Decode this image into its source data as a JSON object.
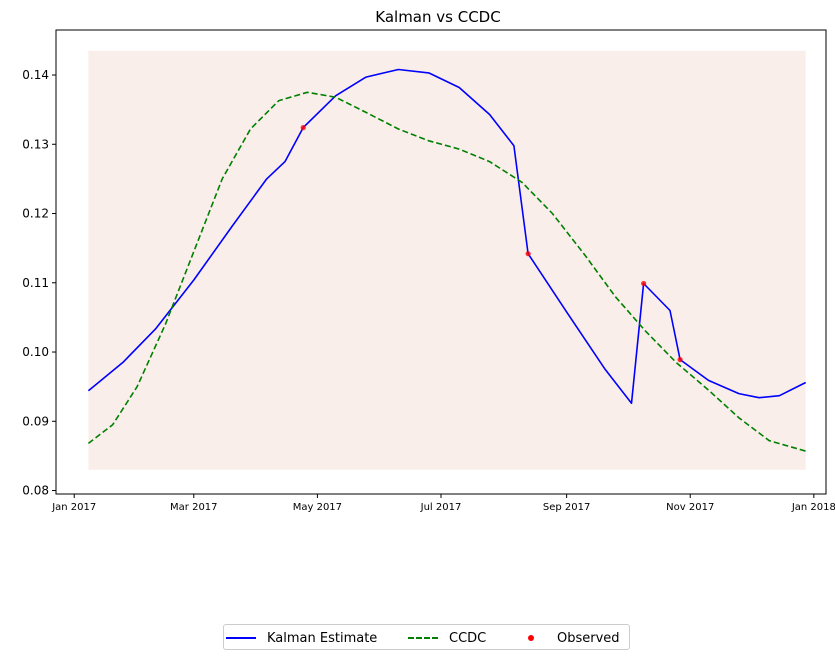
{
  "chart_data": {
    "type": "line",
    "title": "Kalman vs CCDC",
    "xlabel": "",
    "ylabel": "",
    "x_axis": {
      "type": "date",
      "range": [
        "2016-12-23",
        "2018-01-07"
      ],
      "tick_labels": [
        "Jan 2017",
        "Mar 2017",
        "May 2017",
        "Jul 2017",
        "Sep 2017",
        "Nov 2017",
        "Jan 2018"
      ],
      "tick_dates": [
        "2017-01-01",
        "2017-03-01",
        "2017-05-01",
        "2017-07-01",
        "2017-09-01",
        "2017-11-01",
        "2018-01-01"
      ]
    },
    "y_axis": {
      "range": [
        0.0795,
        0.1465
      ],
      "ticks": [
        0.08,
        0.09,
        0.1,
        0.11,
        0.12,
        0.13,
        0.14
      ],
      "tick_labels": [
        "0.08",
        "0.09",
        "0.10",
        "0.11",
        "0.12",
        "0.13",
        "0.14"
      ]
    },
    "shaded_region": {
      "x_start": "2017-01-08",
      "x_end": "2017-12-28",
      "y_min": 0.083,
      "y_max": 0.1435,
      "color": "#f4d6cc"
    },
    "series": [
      {
        "name": "Kalman Estimate",
        "style": "solid",
        "color": "#0000ff",
        "points": [
          [
            "2017-01-08",
            0.0944
          ],
          [
            "2017-01-25",
            0.0985
          ],
          [
            "2017-02-10",
            0.1033
          ],
          [
            "2017-03-01",
            0.1104
          ],
          [
            "2017-03-20",
            0.1182
          ],
          [
            "2017-04-06",
            0.125
          ],
          [
            "2017-04-15",
            0.1275
          ],
          [
            "2017-04-24",
            0.1324
          ],
          [
            "2017-05-10",
            0.137
          ],
          [
            "2017-05-25",
            0.1397
          ],
          [
            "2017-06-10",
            0.1408
          ],
          [
            "2017-06-25",
            0.1403
          ],
          [
            "2017-07-10",
            0.1382
          ],
          [
            "2017-07-25",
            0.1343
          ],
          [
            "2017-08-06",
            0.1298
          ],
          [
            "2017-08-13",
            0.1142
          ],
          [
            "2017-09-01",
            0.1058
          ],
          [
            "2017-09-20",
            0.0975
          ],
          [
            "2017-10-03",
            0.0926
          ],
          [
            "2017-10-09",
            0.1099
          ],
          [
            "2017-10-22",
            0.106
          ],
          [
            "2017-10-27",
            0.0989
          ],
          [
            "2017-11-10",
            0.0959
          ],
          [
            "2017-11-25",
            0.094
          ],
          [
            "2017-12-05",
            0.0934
          ],
          [
            "2017-12-15",
            0.0937
          ],
          [
            "2017-12-28",
            0.0956
          ]
        ]
      },
      {
        "name": "CCDC",
        "style": "dashed",
        "color": "#008000",
        "points": [
          [
            "2017-01-08",
            0.0868
          ],
          [
            "2017-01-20",
            0.0895
          ],
          [
            "2017-02-01",
            0.095
          ],
          [
            "2017-02-15",
            0.104
          ],
          [
            "2017-03-01",
            0.1145
          ],
          [
            "2017-03-15",
            0.125
          ],
          [
            "2017-03-29",
            0.1322
          ],
          [
            "2017-04-12",
            0.1363
          ],
          [
            "2017-04-26",
            0.1375
          ],
          [
            "2017-05-10",
            0.1368
          ],
          [
            "2017-05-25",
            0.1346
          ],
          [
            "2017-06-10",
            0.1322
          ],
          [
            "2017-06-25",
            0.1305
          ],
          [
            "2017-07-10",
            0.1293
          ],
          [
            "2017-07-25",
            0.1275
          ],
          [
            "2017-08-10",
            0.1245
          ],
          [
            "2017-08-25",
            0.12
          ],
          [
            "2017-09-10",
            0.114
          ],
          [
            "2017-09-25",
            0.108
          ],
          [
            "2017-10-10",
            0.103
          ],
          [
            "2017-10-25",
            0.0985
          ],
          [
            "2017-11-10",
            0.0945
          ],
          [
            "2017-11-25",
            0.0905
          ],
          [
            "2017-12-10",
            0.0872
          ],
          [
            "2017-12-28",
            0.0857
          ]
        ]
      }
    ],
    "observed": {
      "name": "Observed",
      "color": "#ff0000",
      "points": [
        [
          "2017-04-24",
          0.1324
        ],
        [
          "2017-08-13",
          0.1142
        ],
        [
          "2017-10-09",
          0.1099
        ],
        [
          "2017-10-27",
          0.0989
        ]
      ]
    },
    "legend": {
      "placement": "bottom-center",
      "items": [
        "Kalman Estimate",
        "CCDC",
        "Observed"
      ]
    },
    "grid": false
  }
}
